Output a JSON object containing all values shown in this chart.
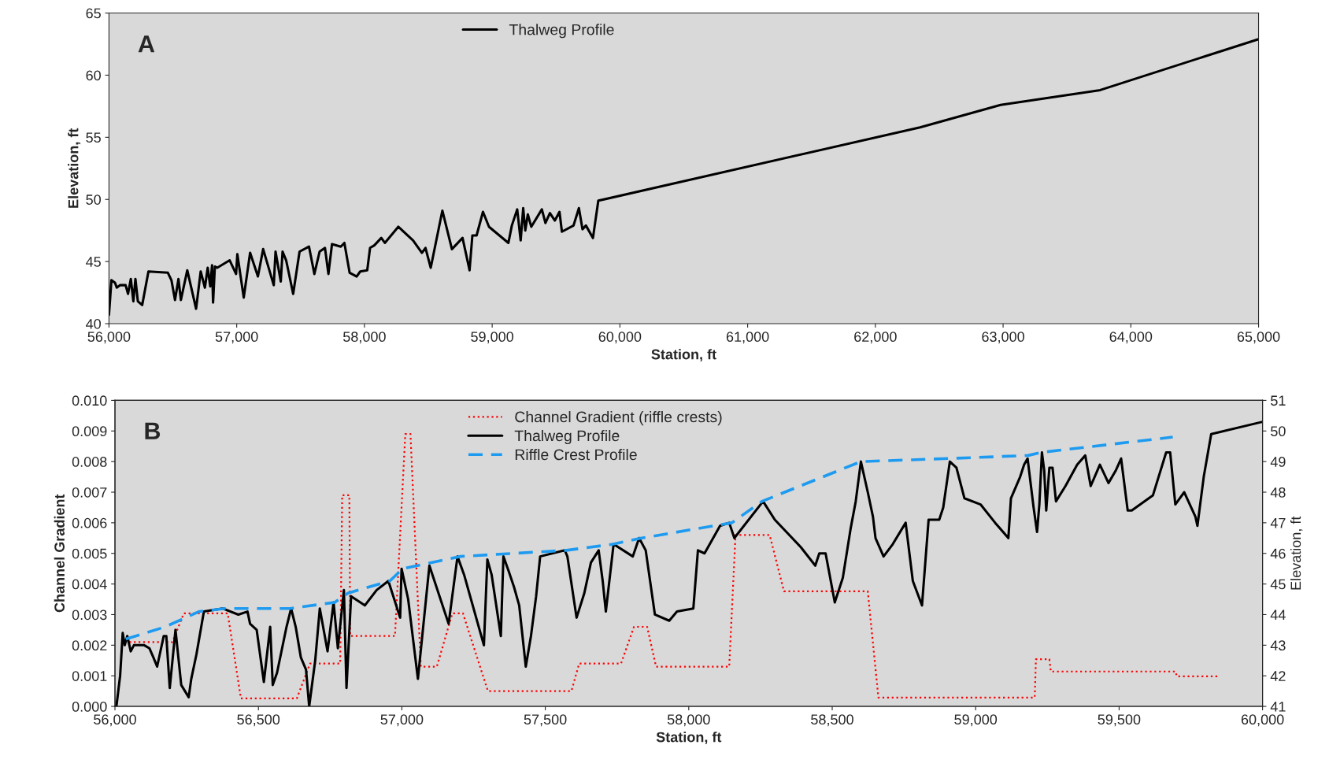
{
  "chart_data": [
    {
      "type": "line",
      "xlabel": "Station, ft",
      "ylabel": "Elevation, ft",
      "annotations": [
        "A"
      ],
      "xlim": [
        56000,
        65000
      ],
      "xticks": [
        {
          "value": 56000,
          "label": "56,000"
        },
        {
          "value": 57000,
          "label": "57,000"
        },
        {
          "value": 58000,
          "label": "58,000"
        },
        {
          "value": 59000,
          "label": "59,000"
        },
        {
          "value": 60000,
          "label": "60,000"
        },
        {
          "value": 61000,
          "label": "61,000"
        },
        {
          "value": 62000,
          "label": "62,000"
        },
        {
          "value": 63000,
          "label": "63,000"
        },
        {
          "value": 64000,
          "label": "64,000"
        },
        {
          "value": 65000,
          "label": "65,000"
        }
      ],
      "ylim": [
        40,
        65
      ],
      "yticks": [
        40,
        45,
        50,
        55,
        60,
        65
      ],
      "grid": false,
      "legend": "top",
      "series": [
        {
          "name": "Thalweg Profile",
          "color": "#000000",
          "line_style": "solid",
          "x": [
            56000,
            56019,
            56047,
            56061,
            56088,
            56130,
            56149,
            56171,
            56191,
            56207,
            56226,
            56260,
            56309,
            56461,
            56489,
            56517,
            56544,
            56563,
            56613,
            56682,
            56718,
            56751,
            56773,
            56793,
            56807,
            56815,
            56829,
            56848,
            56945,
            56995,
            57005,
            57055,
            57105,
            57166,
            57207,
            57290,
            57304,
            57345,
            57359,
            57387,
            57442,
            57492,
            57566,
            57608,
            57649,
            57691,
            57718,
            57746,
            57815,
            57843,
            57884,
            57939,
            57967,
            58022,
            58044,
            58077,
            58132,
            58160,
            58265,
            58381,
            58450,
            58478,
            58519,
            58610,
            58685,
            58768,
            58823,
            58845,
            58878,
            58928,
            58975,
            59127,
            59154,
            59196,
            59223,
            59243,
            59259,
            59279,
            59306,
            59389,
            59417,
            59452,
            59491,
            59527,
            59546,
            59637,
            59679,
            59707,
            59734,
            59789,
            59831,
            62350,
            62980,
            63760,
            65000
          ],
          "values": [
            40.7,
            43.5,
            43.3,
            42.9,
            43.1,
            43.1,
            42.4,
            43.6,
            41.8,
            43.6,
            41.8,
            41.5,
            44.2,
            44.1,
            43.5,
            41.9,
            43.6,
            41.9,
            44.3,
            41.2,
            44.2,
            42.9,
            44.5,
            43.0,
            44.7,
            41.7,
            44.6,
            44.5,
            45.1,
            44.0,
            45.6,
            42.1,
            45.7,
            43.8,
            46.0,
            43.1,
            45.8,
            43.4,
            45.8,
            45.1,
            42.4,
            45.8,
            46.2,
            44.0,
            45.8,
            46.1,
            44.0,
            46.4,
            46.2,
            46.5,
            44.1,
            43.8,
            44.2,
            44.3,
            46.1,
            46.3,
            46.9,
            46.5,
            47.8,
            46.7,
            45.7,
            46.1,
            44.5,
            49.1,
            46.0,
            46.9,
            44.3,
            47.1,
            47.1,
            49.0,
            47.8,
            46.5,
            47.9,
            49.2,
            46.7,
            49.3,
            47.5,
            48.8,
            47.8,
            49.2,
            48.1,
            48.9,
            48.3,
            49.0,
            47.4,
            47.9,
            49.3,
            47.6,
            47.9,
            46.9,
            49.9,
            55.8,
            57.6,
            58.8,
            62.9
          ]
        }
      ]
    },
    {
      "type": "line",
      "xlabel": "Station, ft",
      "ylabel": "Channel Gradient",
      "y2label": "Elevation, ft",
      "annotations": [
        "B"
      ],
      "xlim": [
        56000,
        60000
      ],
      "xticks": [
        {
          "value": 56000,
          "label": "56,000"
        },
        {
          "value": 56500,
          "label": "56,500"
        },
        {
          "value": 57000,
          "label": "57,000"
        },
        {
          "value": 57500,
          "label": "57,500"
        },
        {
          "value": 58000,
          "label": "58,000"
        },
        {
          "value": 58500,
          "label": "58,500"
        },
        {
          "value": 59000,
          "label": "59,000"
        },
        {
          "value": 59500,
          "label": "59,500"
        },
        {
          "value": 60000,
          "label": "60,000"
        }
      ],
      "ylim": [
        0,
        0.01
      ],
      "yticks": [
        {
          "value": 0,
          "label": "0.000"
        },
        {
          "value": 0.001,
          "label": "0.001"
        },
        {
          "value": 0.002,
          "label": "0.002"
        },
        {
          "value": 0.003,
          "label": "0.003"
        },
        {
          "value": 0.004,
          "label": "0.004"
        },
        {
          "value": 0.005,
          "label": "0.005"
        },
        {
          "value": 0.006,
          "label": "0.006"
        },
        {
          "value": 0.007,
          "label": "0.007"
        },
        {
          "value": 0.008,
          "label": "0.008"
        },
        {
          "value": 0.009,
          "label": "0.009"
        },
        {
          "value": 0.01,
          "label": "0.010"
        }
      ],
      "y2lim": [
        41,
        51
      ],
      "y2ticks": [
        41,
        42,
        43,
        44,
        45,
        46,
        47,
        48,
        49,
        50,
        51
      ],
      "grid": false,
      "legend": "top",
      "series": [
        {
          "name": "Channel Gradient (riffle crests)",
          "color": "#ff0000",
          "line_style": "dotted",
          "x": [
            56050,
            56200,
            56240,
            56393,
            56439,
            56634,
            56680,
            56785,
            56792,
            56817,
            56820,
            56976,
            57012,
            57030,
            57066,
            57122,
            57176,
            57213,
            57300,
            57591,
            57618,
            57764,
            57809,
            57855,
            57886,
            58141,
            58163,
            58282,
            58332,
            58624,
            58661,
            59206,
            59210,
            59257,
            59262,
            59697,
            59701,
            59849
          ],
          "values": [
            0.0021,
            0.0021,
            0.00304,
            0.00304,
            0.00026,
            0.00026,
            0.0014,
            0.0014,
            0.0069,
            0.0069,
            0.0023,
            0.0023,
            0.0089,
            0.0089,
            0.0013,
            0.0013,
            0.00304,
            0.00304,
            0.0005,
            0.0005,
            0.0014,
            0.0014,
            0.0026,
            0.0026,
            0.0013,
            0.0013,
            0.0056,
            0.0056,
            0.00376,
            0.00376,
            0.00029,
            0.00029,
            0.00154,
            0.00154,
            0.00114,
            0.00114,
            0.00098,
            0.00098
          ]
        },
        {
          "name": "Thalweg Profile",
          "color": "#000000",
          "line_style": "solid",
          "axis": "y2",
          "x": [
            56005,
            56018,
            56027,
            56034,
            56043,
            56055,
            56066,
            56102,
            56120,
            56134,
            56147,
            56170,
            56179,
            56191,
            56211,
            56231,
            56257,
            56266,
            56284,
            56310,
            56375,
            56430,
            56462,
            56471,
            56494,
            56519,
            56541,
            56550,
            56565,
            56598,
            56614,
            56630,
            56648,
            56666,
            56677,
            56698,
            56714,
            56741,
            56762,
            56777,
            56798,
            56807,
            56823,
            56871,
            56912,
            56953,
            56994,
            56999,
            57022,
            57056,
            57096,
            57163,
            57194,
            57217,
            57286,
            57298,
            57313,
            57345,
            57354,
            57373,
            57391,
            57409,
            57432,
            57450,
            57468,
            57482,
            57568,
            57577,
            57609,
            57636,
            57659,
            57686,
            57700,
            57711,
            57738,
            57805,
            57827,
            57850,
            57882,
            57932,
            57959,
            58016,
            58032,
            58055,
            58109,
            58141,
            58159,
            58259,
            58300,
            58391,
            58441,
            58455,
            58477,
            58509,
            58537,
            58564,
            58582,
            58600,
            58624,
            58642,
            58651,
            58679,
            58711,
            58756,
            58781,
            58813,
            58836,
            58873,
            58887,
            58910,
            58933,
            58961,
            59017,
            59068,
            59114,
            59123,
            59155,
            59169,
            59181,
            59202,
            59214,
            59222,
            59231,
            59239,
            59246,
            59257,
            59268,
            59280,
            59313,
            59354,
            59382,
            59401,
            59433,
            59463,
            59488,
            59507,
            59530,
            59544,
            59618,
            59664,
            59678,
            59696,
            59727,
            59766,
            59773,
            59795,
            59821,
            60000
          ],
          "values": [
            41.0,
            42.0,
            43.4,
            43.0,
            43.3,
            42.8,
            43.0,
            43.0,
            42.9,
            42.6,
            42.3,
            43.3,
            43.3,
            41.6,
            43.5,
            41.7,
            41.3,
            41.9,
            42.7,
            44.1,
            44.2,
            44.0,
            44.1,
            43.7,
            43.5,
            41.8,
            43.6,
            41.7,
            42.1,
            43.6,
            44.2,
            43.6,
            42.6,
            42.2,
            41.0,
            42.5,
            44.2,
            42.8,
            44.4,
            42.9,
            44.8,
            41.6,
            44.6,
            44.3,
            44.8,
            45.1,
            43.9,
            45.5,
            44.5,
            41.9,
            45.6,
            43.7,
            45.9,
            45.3,
            43.0,
            45.8,
            45.3,
            43.3,
            45.9,
            45.4,
            44.9,
            44.3,
            42.3,
            43.3,
            44.6,
            45.9,
            46.1,
            45.9,
            43.9,
            44.7,
            45.7,
            46.1,
            45.1,
            44.1,
            46.3,
            45.9,
            46.5,
            46.1,
            44.0,
            43.8,
            44.1,
            44.2,
            46.1,
            46.0,
            46.9,
            47.0,
            46.5,
            47.7,
            47.1,
            46.2,
            45.6,
            46.0,
            46.0,
            44.4,
            45.2,
            46.8,
            47.7,
            49.0,
            48.0,
            47.2,
            46.5,
            45.9,
            46.3,
            47.0,
            45.1,
            44.3,
            47.1,
            47.1,
            47.5,
            49.0,
            48.8,
            47.8,
            47.6,
            47.0,
            46.5,
            47.8,
            48.5,
            48.9,
            49.1,
            47.5,
            46.7,
            47.6,
            49.3,
            48.7,
            47.4,
            48.8,
            48.8,
            47.7,
            48.2,
            48.9,
            49.2,
            48.2,
            48.9,
            48.3,
            48.7,
            49.1,
            47.4,
            47.4,
            47.9,
            49.3,
            49.3,
            47.6,
            48.0,
            47.2,
            46.9,
            48.5,
            49.9,
            50.3
          ]
        },
        {
          "name": "Riffle Crest Profile",
          "color": "#1e9bf0",
          "line_style": "dashed",
          "axis": "y2",
          "x": [
            56038,
            56175,
            56293,
            56384,
            56466,
            56611,
            56766,
            56812,
            56958,
            57003,
            57204,
            57573,
            57736,
            57836,
            58150,
            58255,
            58600,
            58906,
            59183,
            59229,
            59687
          ],
          "values": [
            43.2,
            43.6,
            44.1,
            44.2,
            44.2,
            44.2,
            44.4,
            44.7,
            45.1,
            45.5,
            45.9,
            46.1,
            46.3,
            46.5,
            47.0,
            47.7,
            49.0,
            49.1,
            49.2,
            49.3,
            49.8
          ]
        }
      ]
    }
  ]
}
